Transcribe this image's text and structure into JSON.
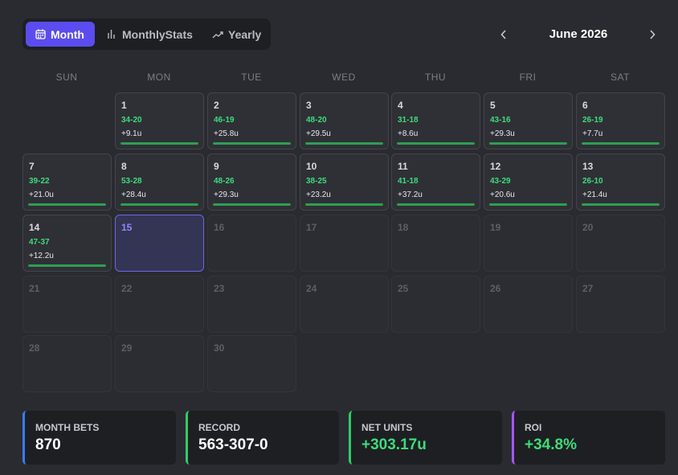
{
  "tabs": [
    {
      "label": "Month",
      "icon": "calendar-icon",
      "active": true
    },
    {
      "label": "MonthlyStats",
      "icon": "bar-chart-icon",
      "active": false
    },
    {
      "label": "Yearly",
      "icon": "trend-up-icon",
      "active": false
    }
  ],
  "calendar": {
    "month_label": "June 2026",
    "weekdays": [
      "SUN",
      "MON",
      "TUE",
      "WED",
      "THU",
      "FRI",
      "SAT"
    ],
    "days": [
      {
        "day": "1",
        "record": "34-20",
        "units": "+9.1u"
      },
      {
        "day": "2",
        "record": "46-19",
        "units": "+25.8u"
      },
      {
        "day": "3",
        "record": "48-20",
        "units": "+29.5u"
      },
      {
        "day": "4",
        "record": "31-18",
        "units": "+8.6u"
      },
      {
        "day": "5",
        "record": "43-16",
        "units": "+29.3u"
      },
      {
        "day": "6",
        "record": "26-19",
        "units": "+7.7u"
      },
      {
        "day": "7",
        "record": "39-22",
        "units": "+21.0u"
      },
      {
        "day": "8",
        "record": "53-28",
        "units": "+28.4u"
      },
      {
        "day": "9",
        "record": "48-26",
        "units": "+29.3u"
      },
      {
        "day": "10",
        "record": "38-25",
        "units": "+23.2u"
      },
      {
        "day": "11",
        "record": "41-18",
        "units": "+37.2u"
      },
      {
        "day": "12",
        "record": "43-29",
        "units": "+20.6u"
      },
      {
        "day": "13",
        "record": "26-10",
        "units": "+21.4u"
      },
      {
        "day": "14",
        "record": "47-37",
        "units": "+12.2u"
      },
      {
        "day": "15",
        "today": true
      },
      {
        "day": "16"
      },
      {
        "day": "17"
      },
      {
        "day": "18"
      },
      {
        "day": "19"
      },
      {
        "day": "20"
      },
      {
        "day": "21"
      },
      {
        "day": "22"
      },
      {
        "day": "23"
      },
      {
        "day": "24"
      },
      {
        "day": "25"
      },
      {
        "day": "26"
      },
      {
        "day": "27"
      },
      {
        "day": "28"
      },
      {
        "day": "29"
      },
      {
        "day": "30"
      }
    ]
  },
  "stats": [
    {
      "label": "MONTH BETS",
      "value": "870",
      "accent": "#3a7bff",
      "value_color": "#ffffff"
    },
    {
      "label": "RECORD",
      "value": "563-307-0",
      "accent": "#2ecc6a",
      "value_color": "#ffffff"
    },
    {
      "label": "NET UNITS",
      "value": "+303.17u",
      "accent": "#2ecc6a",
      "value_color": "#3ddc7a"
    },
    {
      "label": "ROI",
      "value": "+34.8%",
      "accent": "#a855f7",
      "value_color": "#3ddc7a"
    }
  ],
  "colors": {
    "background": "#2a2b30",
    "accent": "#5b4cf0",
    "positive": "#3ddc7a",
    "today_border": "#6d67e6"
  }
}
